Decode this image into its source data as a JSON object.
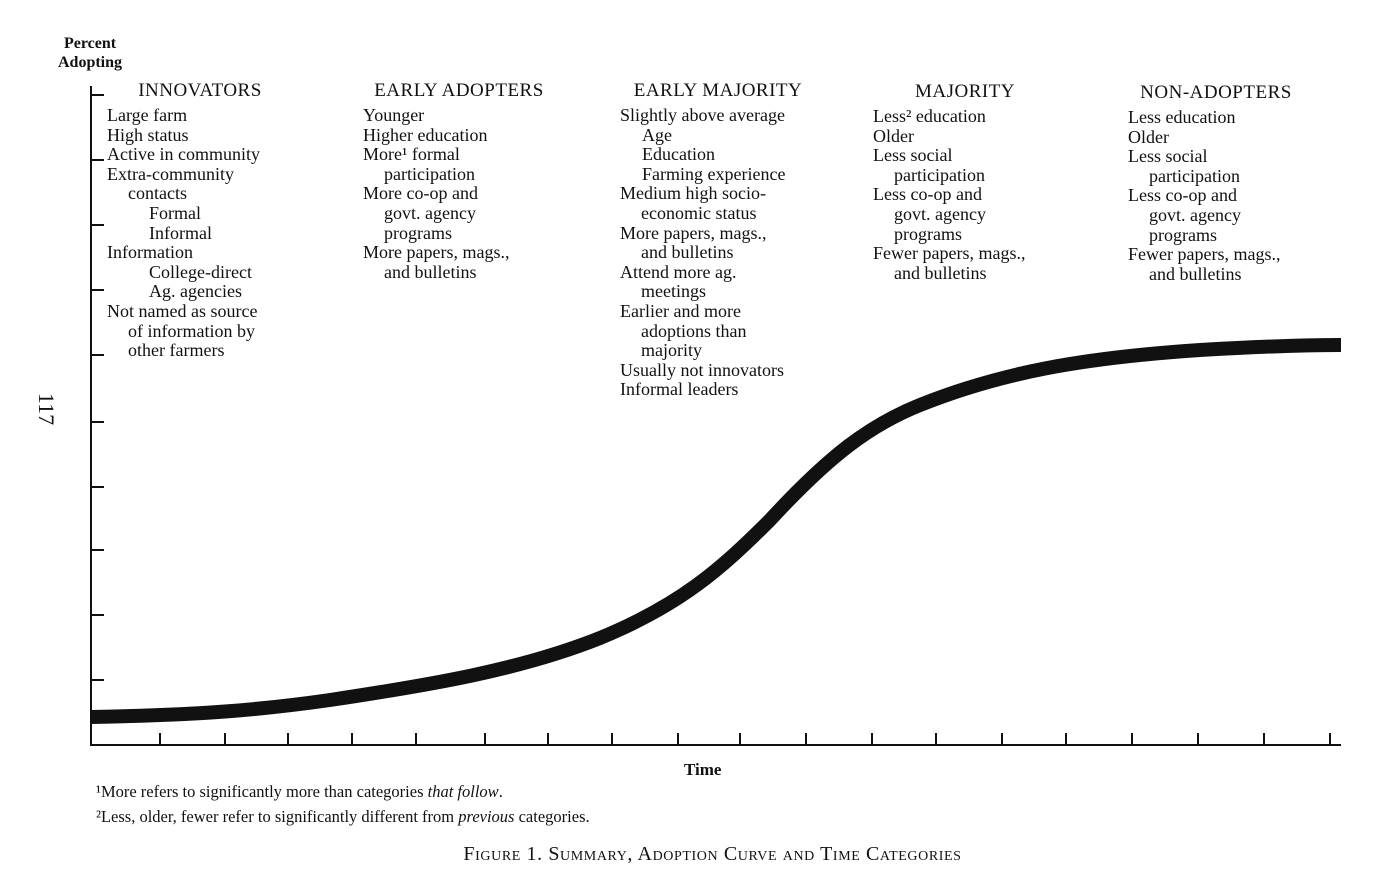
{
  "page_number": "117",
  "y_axis_label": [
    "Percent",
    "Adopting"
  ],
  "x_axis_label": "Time",
  "categories": [
    {
      "title": "INNOVATORS",
      "items": [
        {
          "lines": [
            "Large farm"
          ]
        },
        {
          "lines": [
            "High status"
          ]
        },
        {
          "lines": [
            "Active in community"
          ]
        },
        {
          "lines": [
            "Extra-community",
            "contacts"
          ],
          "sub": [
            "Formal",
            "Informal"
          ]
        },
        {
          "lines": [
            "Information"
          ],
          "sub": [
            "College-direct",
            "Ag. agencies"
          ]
        },
        {
          "lines": [
            "Not named as source",
            "of information by",
            "other farmers"
          ]
        }
      ]
    },
    {
      "title": "EARLY ADOPTERS",
      "items": [
        {
          "lines": [
            "Younger"
          ]
        },
        {
          "lines": [
            "Higher education"
          ]
        },
        {
          "lines": [
            "More¹ formal",
            "participation"
          ]
        },
        {
          "lines": [
            "More co-op and",
            "govt. agency",
            "programs"
          ]
        },
        {
          "lines": [
            "More papers, mags.,",
            "and bulletins"
          ]
        }
      ]
    },
    {
      "title": "EARLY MAJORITY",
      "items": [
        {
          "lines": [
            "Slightly above average"
          ],
          "sub": [
            "Age",
            "Education",
            "Farming experience"
          ]
        },
        {
          "lines": [
            "Medium high socio-",
            "economic status"
          ]
        },
        {
          "lines": [
            "More papers, mags.,",
            "and bulletins"
          ]
        },
        {
          "lines": [
            "Attend more ag.",
            "meetings"
          ]
        },
        {
          "lines": [
            "Earlier and more",
            "adoptions than",
            "majority"
          ]
        },
        {
          "lines": [
            "Usually not innovators"
          ]
        },
        {
          "lines": [
            "Informal leaders"
          ]
        }
      ]
    },
    {
      "title": "MAJORITY",
      "items": [
        {
          "lines": [
            "Less² education"
          ]
        },
        {
          "lines": [
            "Older"
          ]
        },
        {
          "lines": [
            "Less social",
            "participation"
          ]
        },
        {
          "lines": [
            "Less co-op and",
            "govt. agency",
            "programs"
          ]
        },
        {
          "lines": [
            "Fewer papers, mags.,",
            "and bulletins"
          ]
        }
      ]
    },
    {
      "title": "NON-ADOPTERS",
      "items": [
        {
          "lines": [
            "Less education"
          ]
        },
        {
          "lines": [
            "Older"
          ]
        },
        {
          "lines": [
            "Less social",
            "participation"
          ]
        },
        {
          "lines": [
            "Less co-op and",
            "govt. agency",
            "programs"
          ]
        },
        {
          "lines": [
            "Fewer papers, mags.,",
            "and bulletins"
          ]
        }
      ]
    }
  ],
  "footnotes": [
    [
      "¹More refers to significantly more than categories ",
      "that follow",
      "."
    ],
    [
      "²Less, older, fewer refer to significantly different from ",
      "previous",
      " categories."
    ]
  ],
  "caption": "Figure 1. Summary, Adoption Curve and Time Categories"
}
